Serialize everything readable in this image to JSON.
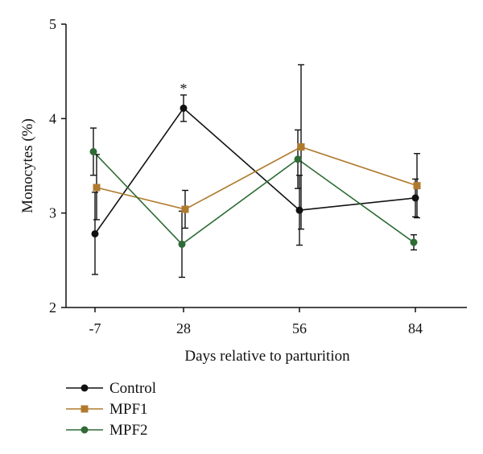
{
  "chart_data": {
    "type": "line",
    "xlabel": "Days relative to parturition",
    "ylabel": "Monocytes (%)",
    "categories": [
      "-7",
      "28",
      "56",
      "84"
    ],
    "ylim": [
      2,
      5
    ],
    "yticks": [
      "2",
      "3",
      "4",
      "5"
    ],
    "grid": false,
    "legend_position": "bottom-left",
    "series": [
      {
        "name": "Control",
        "marker": "circle",
        "color": "#111111",
        "values": [
          2.78,
          4.11,
          3.03,
          3.16
        ],
        "error_low": [
          2.35,
          3.97,
          2.66,
          2.96
        ],
        "error_high": [
          3.22,
          4.25,
          3.4,
          3.36
        ]
      },
      {
        "name": "MPF1",
        "marker": "square",
        "color": "#b07a2e",
        "values": [
          3.27,
          3.04,
          3.7,
          3.29
        ],
        "error_low": [
          2.93,
          2.84,
          2.83,
          2.95
        ],
        "error_high": [
          3.62,
          3.24,
          4.57,
          3.63
        ]
      },
      {
        "name": "MPF2",
        "marker": "circle",
        "color": "#2e6b35",
        "values": [
          3.65,
          2.67,
          3.57,
          2.69
        ],
        "error_low": [
          3.4,
          2.32,
          3.26,
          2.61
        ],
        "error_high": [
          3.9,
          3.02,
          3.88,
          2.77
        ]
      }
    ],
    "annotations": [
      {
        "text": "*",
        "category": "28",
        "y": 4.25
      }
    ]
  }
}
